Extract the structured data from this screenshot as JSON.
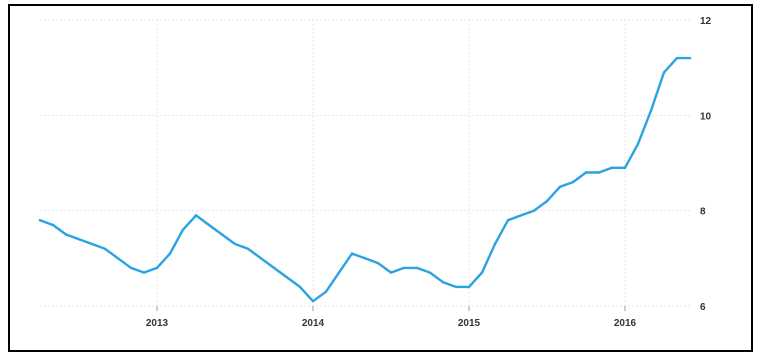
{
  "chart_data": {
    "type": "line",
    "title": "",
    "xlabel": "",
    "ylabel": "",
    "x_tick_labels": [
      "2013",
      "2014",
      "2015",
      "2016"
    ],
    "y_tick_labels": [
      "6",
      "8",
      "10",
      "12"
    ],
    "ylim": [
      6,
      12
    ],
    "grid": true,
    "legend": "none",
    "line_color": "#2aa3e0",
    "series": [
      {
        "x": [
          "2012-04",
          "2012-05",
          "2012-06",
          "2012-07",
          "2012-08",
          "2012-09",
          "2012-10",
          "2012-11",
          "2012-12",
          "2013-01",
          "2013-02",
          "2013-03",
          "2013-04",
          "2013-05",
          "2013-06",
          "2013-07",
          "2013-08",
          "2013-09",
          "2013-10",
          "2013-11",
          "2013-12",
          "2014-01",
          "2014-02",
          "2014-03",
          "2014-04",
          "2014-05",
          "2014-06",
          "2014-07",
          "2014-08",
          "2014-09",
          "2014-10",
          "2014-11",
          "2014-12",
          "2015-01",
          "2015-02",
          "2015-03",
          "2015-04",
          "2015-05",
          "2015-06",
          "2015-07",
          "2015-08",
          "2015-09",
          "2015-10",
          "2015-11",
          "2015-12",
          "2016-01",
          "2016-02",
          "2016-03",
          "2016-04",
          "2016-05",
          "2016-06"
        ],
        "y": [
          7.8,
          7.7,
          7.5,
          7.4,
          7.3,
          7.2,
          7.0,
          6.8,
          6.7,
          6.8,
          7.1,
          7.6,
          7.9,
          7.7,
          7.5,
          7.3,
          7.2,
          7.0,
          6.8,
          6.6,
          6.4,
          6.1,
          6.3,
          6.7,
          7.1,
          7.0,
          6.9,
          6.7,
          6.8,
          6.8,
          6.7,
          6.5,
          6.4,
          6.4,
          6.7,
          7.3,
          7.8,
          7.9,
          8.0,
          8.2,
          8.5,
          8.6,
          8.8,
          8.8,
          8.9,
          8.9,
          9.4,
          10.1,
          10.9,
          11.2,
          11.2
        ]
      }
    ]
  }
}
